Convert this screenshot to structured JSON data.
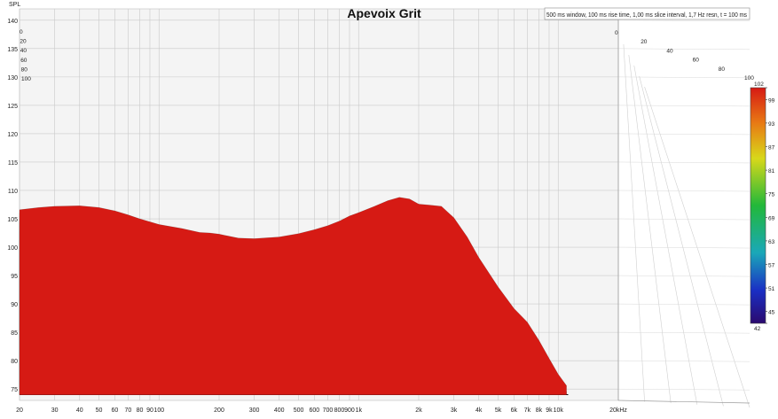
{
  "chart_data": {
    "type": "waterfall-3d-surface",
    "title": "Apevoix Grit",
    "subtitle": "500 ms window, 100 ms rise time, 1,00 ms slice interval, 1,7 Hz resn, t = 100 ms",
    "ylabel": "SPL",
    "yticks": [
      "75",
      "80",
      "85",
      "90",
      "95",
      "100",
      "105",
      "110",
      "115",
      "120",
      "125",
      "130",
      "135",
      "140"
    ],
    "ylim": [
      73,
      142
    ],
    "xticks": [
      "20",
      "30",
      "40",
      "50",
      "60",
      "70",
      "80",
      "90",
      "100",
      "200",
      "300",
      "400",
      "500",
      "600",
      "700",
      "800",
      "900",
      "1k",
      "2k",
      "3k",
      "4k",
      "5k",
      "6k",
      "7k",
      "8k",
      "9k",
      "10k",
      "20kHz"
    ],
    "x_scale": "log",
    "xlim_hz": [
      20,
      20000
    ],
    "time_axis_ticks": [
      "0",
      "20",
      "40",
      "60",
      "80",
      "100"
    ],
    "time_axis_unit": "ms",
    "colorbar": {
      "ticks": [
        "102",
        "99",
        "93",
        "87",
        "81",
        "75",
        "69",
        "63",
        "57",
        "51",
        "45",
        "42"
      ],
      "range": [
        42,
        102
      ]
    },
    "first_slice_response": {
      "freq_hz": [
        20,
        25,
        30,
        40,
        50,
        60,
        70,
        80,
        100,
        130,
        160,
        180,
        200,
        250,
        300,
        400,
        500,
        600,
        700,
        800,
        900,
        1000,
        1200,
        1400,
        1600,
        1800,
        2000,
        2300,
        2600,
        3000,
        3500,
        4000,
        5000,
        6000,
        7000,
        8000,
        9000,
        10000,
        11000
      ],
      "spl_db": [
        106.6,
        107.0,
        107.2,
        107.3,
        107.0,
        106.4,
        105.7,
        105.0,
        104.0,
        103.3,
        102.6,
        102.5,
        102.3,
        101.6,
        101.5,
        101.8,
        102.4,
        103.1,
        103.8,
        104.6,
        105.5,
        106.1,
        107.2,
        108.2,
        108.8,
        108.5,
        107.6,
        107.4,
        107.2,
        105.2,
        101.8,
        98.2,
        93.0,
        89.2,
        86.8,
        83.6,
        80.4,
        77.6,
        75.6
      ]
    }
  }
}
